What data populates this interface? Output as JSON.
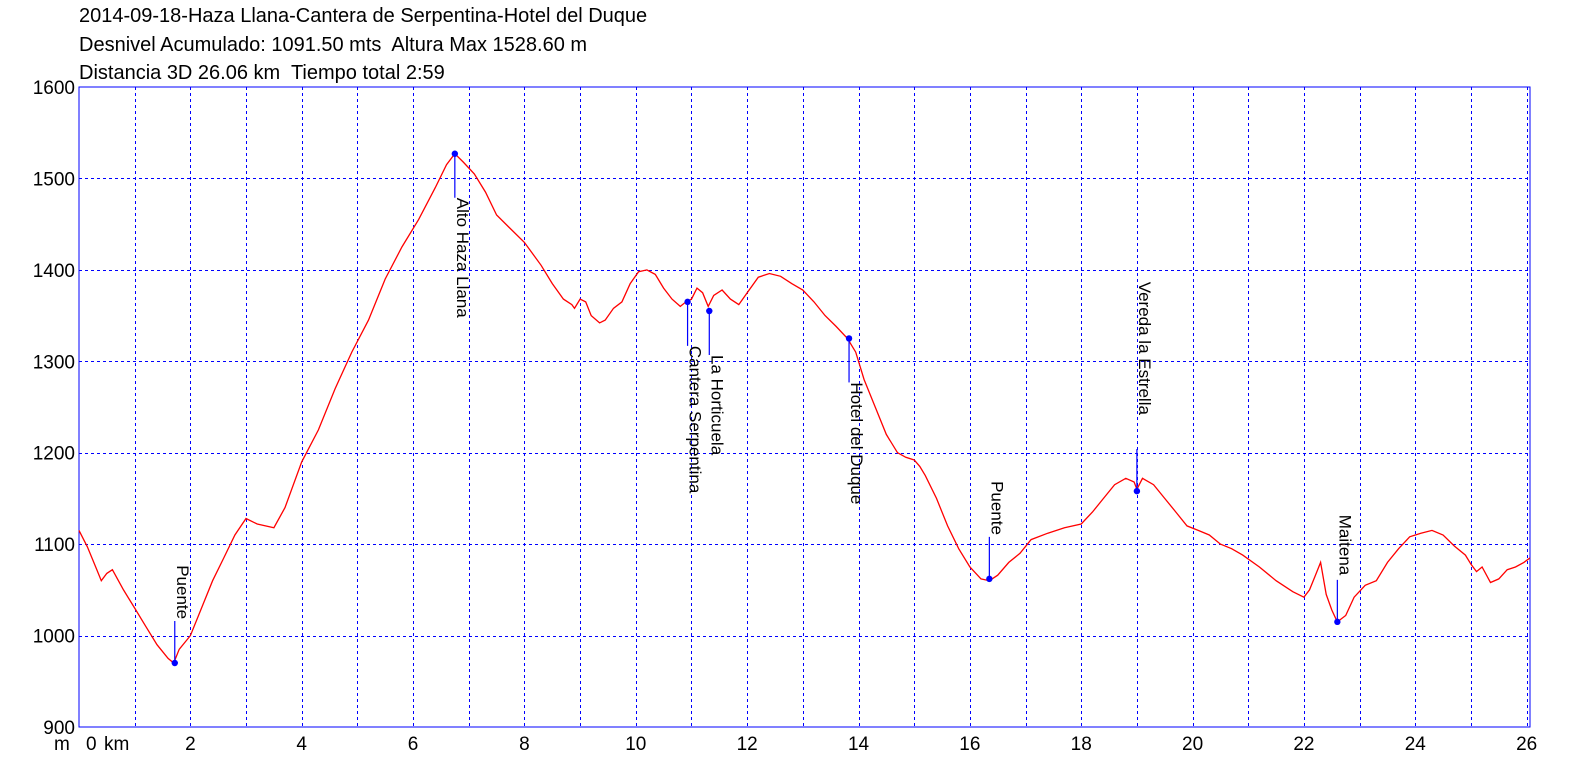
{
  "header": {
    "line1": "2014-09-18-Haza Llana-Cantera de Serpentina-Hotel del Duque",
    "line2": "Desnivel Acumulado: 1091.50 mts  Altura Max 1528.60 m",
    "line3": "Distancia 3D 26.06 km  Tiempo total 2:59"
  },
  "axis_labels": {
    "y_unit": "m",
    "x_unit": "km"
  },
  "colors": {
    "profile": "#ff0000",
    "grid": "#0000ff",
    "frame": "#0000ff",
    "waypoint": "#0000ff"
  },
  "chart_data": {
    "type": "line",
    "title": "2014-09-18-Haza Llana-Cantera de Serpentina-Hotel del Duque",
    "xlabel": "km",
    "ylabel": "m",
    "xlim": [
      0,
      26.06
    ],
    "ylim": [
      900,
      1600
    ],
    "x_ticks": [
      0,
      2,
      4,
      6,
      8,
      10,
      12,
      14,
      16,
      18,
      20,
      22,
      24,
      26
    ],
    "y_ticks": [
      900,
      1000,
      1100,
      1200,
      1300,
      1400,
      1500,
      1600
    ],
    "grid": true,
    "series": [
      {
        "x": [
          0,
          0.15,
          0.3,
          0.4,
          0.5,
          0.6,
          0.8,
          1.0,
          1.2,
          1.4,
          1.6,
          1.7,
          1.8,
          2.0,
          2.2,
          2.4,
          2.6,
          2.8,
          3.0,
          3.2,
          3.5,
          3.7,
          4.0,
          4.3,
          4.6,
          4.9,
          5.2,
          5.5,
          5.8,
          6.1,
          6.4,
          6.6,
          6.75,
          6.9,
          7.1,
          7.3,
          7.5,
          7.7,
          8.0,
          8.3,
          8.5,
          8.7,
          8.85,
          8.9,
          9.0,
          9.1,
          9.2,
          9.35,
          9.45,
          9.6,
          9.75,
          9.9,
          10.05,
          10.2,
          10.35,
          10.5,
          10.65,
          10.8,
          10.9,
          11.0,
          11.1,
          11.2,
          11.3,
          11.4,
          11.55,
          11.7,
          11.85,
          12.0,
          12.2,
          12.4,
          12.6,
          12.8,
          13.0,
          13.2,
          13.4,
          13.6,
          13.8,
          13.95,
          14.1,
          14.3,
          14.5,
          14.7,
          14.85,
          15.0,
          15.1,
          15.2,
          15.4,
          15.6,
          15.8,
          16.0,
          16.2,
          16.35,
          16.5,
          16.7,
          16.9,
          17.1,
          17.4,
          17.7,
          18.0,
          18.2,
          18.4,
          18.6,
          18.8,
          18.95,
          19.0,
          19.1,
          19.3,
          19.5,
          19.7,
          19.9,
          20.1,
          20.3,
          20.5,
          20.7,
          20.9,
          21.2,
          21.5,
          21.8,
          22.0,
          22.1,
          22.2,
          22.3,
          22.4,
          22.5,
          22.6,
          22.75,
          22.9,
          23.1,
          23.3,
          23.5,
          23.7,
          23.9,
          24.1,
          24.3,
          24.5,
          24.7,
          24.9,
          25.0,
          25.1,
          25.2,
          25.35,
          25.5,
          25.65,
          25.8,
          25.95,
          26.06
        ],
        "y": [
          1115,
          1097,
          1075,
          1060,
          1068,
          1072,
          1050,
          1030,
          1010,
          990,
          975,
          970,
          985,
          1000,
          1030,
          1060,
          1085,
          1110,
          1128,
          1122,
          1118,
          1140,
          1190,
          1225,
          1270,
          1310,
          1345,
          1390,
          1425,
          1455,
          1490,
          1515,
          1527,
          1518,
          1505,
          1485,
          1460,
          1448,
          1430,
          1405,
          1385,
          1368,
          1362,
          1358,
          1368,
          1365,
          1350,
          1342,
          1345,
          1358,
          1365,
          1385,
          1398,
          1400,
          1395,
          1380,
          1368,
          1360,
          1365,
          1368,
          1380,
          1375,
          1360,
          1372,
          1378,
          1368,
          1362,
          1375,
          1392,
          1396,
          1393,
          1385,
          1378,
          1365,
          1350,
          1338,
          1325,
          1310,
          1280,
          1250,
          1220,
          1200,
          1195,
          1192,
          1185,
          1175,
          1150,
          1120,
          1095,
          1075,
          1062,
          1060,
          1066,
          1080,
          1090,
          1105,
          1112,
          1118,
          1122,
          1135,
          1150,
          1165,
          1172,
          1168,
          1160,
          1172,
          1165,
          1150,
          1135,
          1120,
          1115,
          1110,
          1100,
          1095,
          1088,
          1075,
          1060,
          1048,
          1042,
          1050,
          1065,
          1080,
          1045,
          1028,
          1015,
          1022,
          1042,
          1055,
          1060,
          1080,
          1095,
          1108,
          1112,
          1115,
          1110,
          1098,
          1088,
          1078,
          1070,
          1075,
          1058,
          1062,
          1072,
          1075,
          1080,
          1085
        ]
      }
    ],
    "waypoints": [
      {
        "name": "Puente",
        "x": 1.72,
        "y": 970
      },
      {
        "name": "Alto Haza Llana",
        "x": 6.75,
        "y": 1527
      },
      {
        "name": "Cantera Serpentina",
        "x": 10.93,
        "y": 1365
      },
      {
        "name": "La Horticuela",
        "x": 11.32,
        "y": 1355
      },
      {
        "name": "Hotel del Duque",
        "x": 13.83,
        "y": 1325
      },
      {
        "name": "Puente",
        "x": 16.35,
        "y": 1062
      },
      {
        "name": "Vereda la Estrella",
        "x": 19.0,
        "y": 1158
      },
      {
        "name": "Maitena",
        "x": 22.6,
        "y": 1015
      }
    ]
  }
}
